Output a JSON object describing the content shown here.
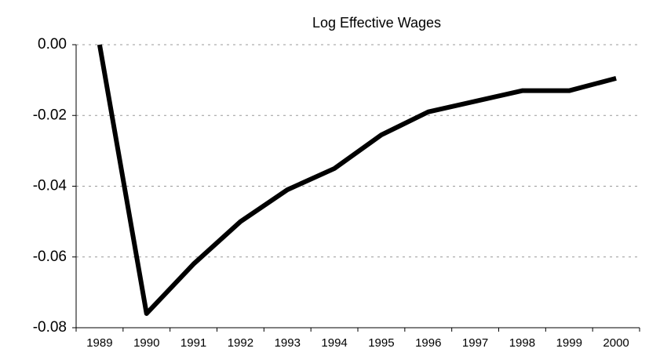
{
  "chart_data": {
    "type": "line",
    "title": "Log Effective Wages",
    "categories": [
      "1989",
      "1990",
      "1991",
      "1992",
      "1993",
      "1994",
      "1995",
      "1996",
      "1997",
      "1998",
      "1999",
      "2000"
    ],
    "series": [
      {
        "name": null,
        "color": "#000000",
        "values": [
          0.0,
          -0.076,
          -0.062,
          -0.05,
          -0.041,
          -0.035,
          -0.0255,
          -0.019,
          -0.016,
          -0.013,
          -0.013,
          -0.0095
        ]
      }
    ],
    "ylim": [
      -0.08,
      0
    ],
    "yticks": [
      {
        "value": -0.08,
        "label": "-0.08"
      },
      {
        "value": -0.06,
        "label": "-0.06"
      },
      {
        "value": -0.04,
        "label": "-0.04"
      },
      {
        "value": -0.02,
        "label": "-0.02"
      },
      {
        "value": 0,
        "label": "0.00"
      }
    ],
    "grid": true
  }
}
